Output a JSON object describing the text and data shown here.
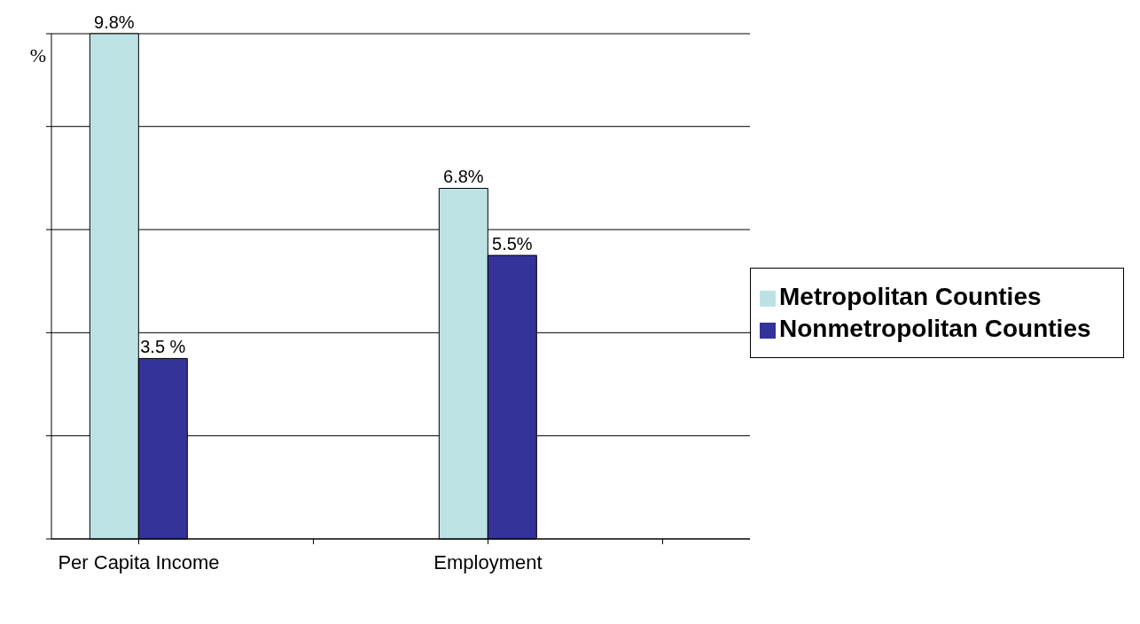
{
  "chart_data": {
    "type": "bar",
    "ylabel": "%",
    "categories": [
      "Per Capita Income",
      null,
      "Employment",
      null
    ],
    "series": [
      {
        "name": "Metropolitan Counties",
        "color": "#bde2e4",
        "values": [
          9.8,
          null,
          6.8,
          null
        ],
        "value_labels": [
          "9.8%",
          null,
          "6.8%",
          null
        ]
      },
      {
        "name": "Nonmetropolitan Counties",
        "color": "#333399",
        "values": [
          3.5,
          null,
          5.5,
          null
        ],
        "value_labels": [
          "3.5 %",
          null,
          "5.5%",
          null
        ]
      }
    ],
    "grid": "y",
    "legend": "right",
    "tick_labels": "x"
  }
}
